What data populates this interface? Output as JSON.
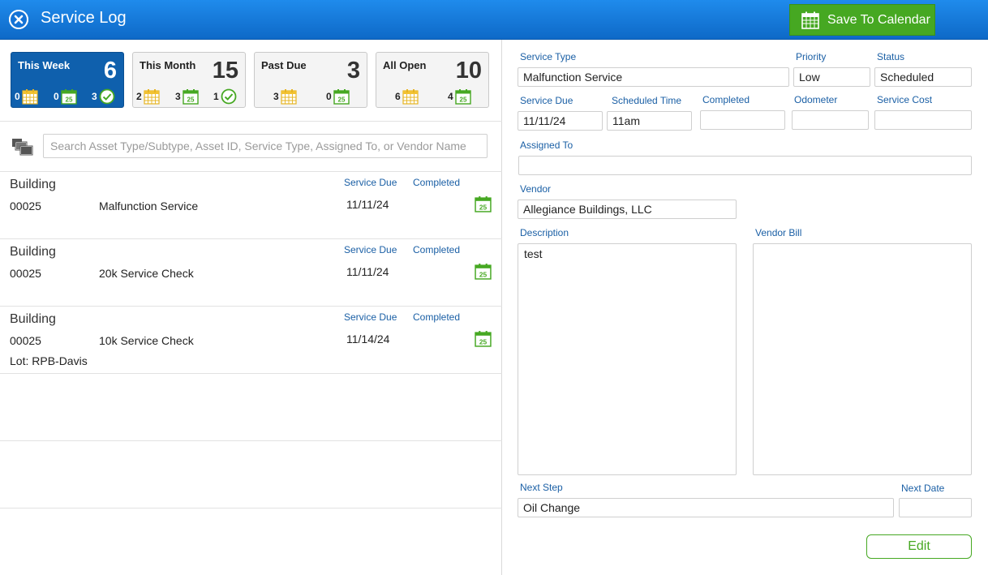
{
  "header": {
    "title": "Service Log",
    "save_calendar_label": "Save To Calendar"
  },
  "summary": {
    "cards": [
      {
        "label": "This Week",
        "count": "6",
        "stats": [
          "0",
          "0",
          "3"
        ]
      },
      {
        "label": "This Month",
        "count": "15",
        "stats": [
          "2",
          "3",
          "1"
        ]
      },
      {
        "label": "Past Due",
        "count": "3",
        "stats": [
          "3",
          "0"
        ]
      },
      {
        "label": "All Open",
        "count": "10",
        "stats": [
          "6",
          "4"
        ]
      }
    ],
    "calendar_day": "25"
  },
  "search": {
    "placeholder": "Search Asset Type/Subtype, Asset ID, Service Type, Assigned To, or Vendor Name"
  },
  "list": {
    "service_due_header": "Service Due",
    "completed_header": "Completed",
    "items": [
      {
        "type": "Building",
        "id": "00025",
        "service": "Malfunction Service",
        "due": "11/11/24",
        "lot": ""
      },
      {
        "type": "Building",
        "id": "00025",
        "service": "20k Service Check",
        "due": "11/11/24",
        "lot": ""
      },
      {
        "type": "Building",
        "id": "00025",
        "service": "10k Service Check",
        "due": "11/14/24",
        "lot": "Lot: RPB-Davis"
      }
    ]
  },
  "detail": {
    "labels": {
      "service_type": "Service Type",
      "priority": "Priority",
      "status": "Status",
      "service_due": "Service Due",
      "scheduled_time": "Scheduled Time",
      "completed": "Completed",
      "odometer": "Odometer",
      "service_cost": "Service Cost",
      "assigned_to": "Assigned To",
      "vendor": "Vendor",
      "description": "Description",
      "vendor_bill": "Vendor Bill",
      "next_step": "Next Step",
      "next_date": "Next Date"
    },
    "values": {
      "service_type": "Malfunction Service",
      "priority": "Low",
      "status": "Scheduled",
      "service_due": "11/11/24",
      "scheduled_time": "11am",
      "completed": "",
      "odometer": "",
      "service_cost": "",
      "assigned_to": "",
      "vendor": "Allegiance Buildings, LLC",
      "description": "test",
      "vendor_bill": "",
      "next_step": "Oil Change",
      "next_date": ""
    },
    "edit_label": "Edit"
  },
  "colors": {
    "header_blue": "#1278da",
    "active_card": "#0f60ad",
    "accent_green": "#46a822",
    "label_blue": "#1a5fa5",
    "calendar_yellow": "#f2c232"
  }
}
